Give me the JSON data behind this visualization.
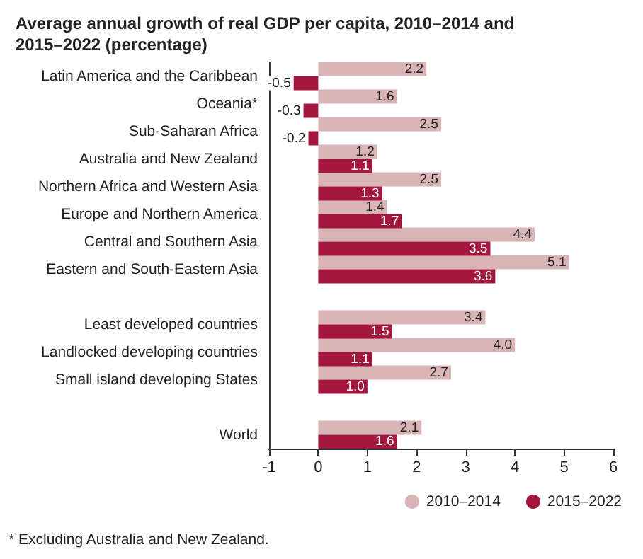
{
  "chart_data": {
    "type": "bar",
    "orientation": "horizontal",
    "title": "Average annual growth of real GDP per capita, 2010–2014 and 2015–2022 (percentage)",
    "categories": [
      "Latin America and the Caribbean",
      "Oceania*",
      "Sub-Saharan Africa",
      "Australia and New Zealand",
      "Northern Africa and Western Asia",
      "Europe and Northern America",
      "Central and Southern Asia",
      "Eastern and South-Eastern Asia",
      null,
      "Least developed countries",
      "Landlocked developing countries",
      "Small island developing States",
      null,
      "World"
    ],
    "series": [
      {
        "name": "2010–2014",
        "color": "#d8b4b6",
        "values": [
          2.2,
          1.6,
          2.5,
          1.2,
          2.5,
          1.4,
          4.4,
          5.1,
          null,
          3.4,
          4.0,
          2.7,
          null,
          2.1
        ],
        "value_labels": [
          "2.2",
          "1.6",
          "2.5",
          "1.2",
          "2.5",
          "1.4",
          "4.4",
          "5.1",
          null,
          "3.4",
          "4.0",
          "2.7",
          null,
          "2.1"
        ]
      },
      {
        "name": "2015–2022",
        "color": "#a3173f",
        "values": [
          -0.5,
          -0.3,
          -0.2,
          1.1,
          1.3,
          1.7,
          3.5,
          3.6,
          null,
          1.5,
          1.1,
          1.0,
          null,
          1.6
        ],
        "value_labels": [
          "-0.5",
          "-0.3",
          "-0.2",
          "1.1",
          "1.3",
          "1.7",
          "3.5",
          "3.6",
          null,
          "1.5",
          "1.1",
          "1.0",
          null,
          "1.6"
        ]
      }
    ],
    "xlim": [
      -1,
      6
    ],
    "xticks": [
      -1,
      0,
      1,
      2,
      3,
      4,
      5,
      6
    ],
    "grid": false,
    "legend": "bottom right",
    "annotations": [
      "* Excluding Australia and New Zealand."
    ]
  }
}
